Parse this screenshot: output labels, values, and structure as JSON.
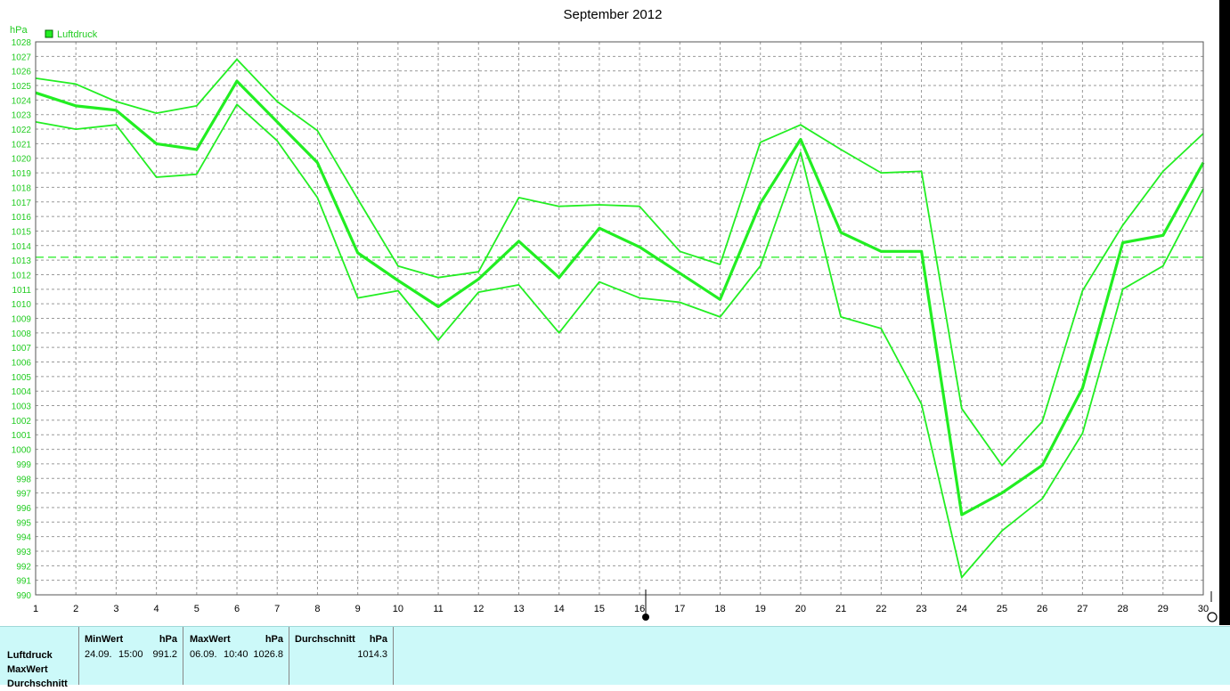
{
  "colors": {
    "line": "#22ee22",
    "grid": "#999999",
    "axis_text": "#22cc22",
    "panel": "#ccf9f9"
  },
  "chart_data": {
    "type": "line",
    "title": "September 2012",
    "y_unit": "hPa",
    "legend": [
      "Luftdruck"
    ],
    "legend_position": "top-left",
    "x": [
      1,
      2,
      3,
      4,
      5,
      6,
      7,
      8,
      9,
      10,
      11,
      12,
      13,
      14,
      15,
      16,
      17,
      18,
      19,
      20,
      21,
      22,
      23,
      24,
      25,
      26,
      27,
      28,
      29,
      30
    ],
    "ylim": [
      990,
      1028
    ],
    "grid": true,
    "reference_line": 1013.2,
    "series": [
      {
        "name": "Luftdruck",
        "role": "max",
        "values": [
          1025.5,
          1025.1,
          1023.9,
          1023.1,
          1023.6,
          1026.8,
          1023.9,
          1021.9,
          1017.2,
          1012.6,
          1011.8,
          1012.2,
          1017.3,
          1016.7,
          1016.8,
          1016.7,
          1013.6,
          1012.7,
          1021.1,
          1022.3,
          1020.6,
          1019.0,
          1019.1,
          1002.8,
          998.9,
          1001.9,
          1010.9,
          1015.4,
          1019.1,
          1021.7
        ]
      },
      {
        "name": "Luftdruck",
        "role": "avg",
        "values": [
          1024.5,
          1023.6,
          1023.3,
          1021.0,
          1020.6,
          1025.3,
          1022.5,
          1019.7,
          1013.5,
          1011.6,
          1009.8,
          1011.7,
          1014.3,
          1011.8,
          1015.2,
          1013.9,
          1012.1,
          1010.3,
          1016.9,
          1021.3,
          1014.9,
          1013.6,
          1013.6,
          995.5,
          997.0,
          998.9,
          1004.2,
          1014.2,
          1014.7,
          1019.7
        ]
      },
      {
        "name": "Luftdruck",
        "role": "min",
        "values": [
          1022.5,
          1022.0,
          1022.3,
          1018.7,
          1018.9,
          1023.7,
          1021.2,
          1017.3,
          1010.4,
          1010.9,
          1007.5,
          1010.8,
          1011.3,
          1008.0,
          1011.5,
          1010.4,
          1010.1,
          1009.1,
          1012.6,
          1020.4,
          1009.1,
          1008.3,
          1003.1,
          991.2,
          994.4,
          996.6,
          1001.1,
          1011.0,
          1012.6,
          1017.9
        ]
      }
    ]
  },
  "stats": {
    "row_labels": [
      "Luftdruck",
      "MaxWert",
      "Durchschnitt"
    ],
    "min": {
      "header": "MinWert",
      "unit": "hPa",
      "date": "24.09.",
      "time": "15:00",
      "value": "991.2"
    },
    "max": {
      "header": "MaxWert",
      "unit": "hPa",
      "date": "06.09.",
      "time": "10:40",
      "value": "1026.8"
    },
    "avg": {
      "header": "Durchschnitt",
      "unit": "hPa",
      "value": "1014.3"
    }
  }
}
